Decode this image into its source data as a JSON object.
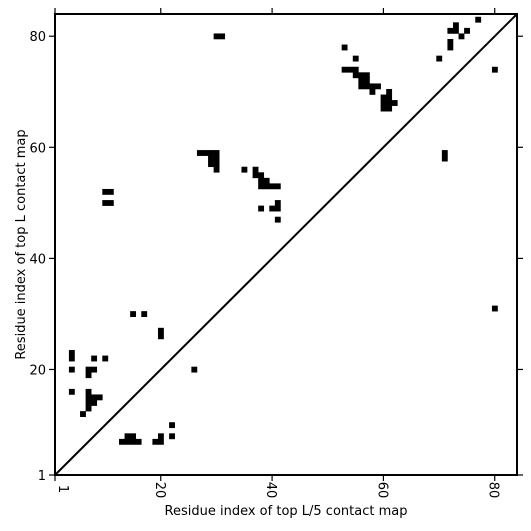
{
  "chart_data": {
    "type": "scatter",
    "title": "",
    "xlabel": "Residue index of top L/5 contact map",
    "ylabel": "Residue index of top L contact map",
    "xlim": [
      1,
      84
    ],
    "ylim": [
      1,
      84
    ],
    "x_ticks": [
      1,
      20,
      40,
      60,
      80
    ],
    "y_ticks": [
      1,
      20,
      40,
      60,
      80
    ],
    "x_ticks_rotated": [
      1
    ],
    "grid": false,
    "legend": "none",
    "diagonal": true,
    "marker_color": "#000000",
    "points": [
      [
        30,
        80
      ],
      [
        31,
        80
      ],
      [
        53,
        78
      ],
      [
        55,
        76
      ],
      [
        53,
        74
      ],
      [
        54,
        74
      ],
      [
        55,
        74
      ],
      [
        55,
        73
      ],
      [
        56,
        73
      ],
      [
        57,
        73
      ],
      [
        56,
        72
      ],
      [
        57,
        72
      ],
      [
        56,
        71
      ],
      [
        57,
        71
      ],
      [
        58,
        71
      ],
      [
        59,
        71
      ],
      [
        58,
        70
      ],
      [
        61,
        70
      ],
      [
        60,
        69
      ],
      [
        61,
        69
      ],
      [
        60,
        68
      ],
      [
        61,
        68
      ],
      [
        62,
        68
      ],
      [
        60,
        67
      ],
      [
        61,
        67
      ],
      [
        72,
        79
      ],
      [
        72,
        78
      ],
      [
        73,
        82
      ],
      [
        72,
        81
      ],
      [
        73,
        81
      ],
      [
        75,
        81
      ],
      [
        74,
        80
      ],
      [
        77,
        83
      ],
      [
        70,
        76
      ],
      [
        80,
        74
      ],
      [
        71,
        59
      ],
      [
        71,
        58
      ],
      [
        27,
        59
      ],
      [
        28,
        59
      ],
      [
        29,
        59
      ],
      [
        30,
        59
      ],
      [
        29,
        58
      ],
      [
        30,
        58
      ],
      [
        29,
        57
      ],
      [
        30,
        57
      ],
      [
        30,
        56
      ],
      [
        35,
        56
      ],
      [
        37,
        56
      ],
      [
        37,
        55
      ],
      [
        38,
        55
      ],
      [
        38,
        54
      ],
      [
        39,
        54
      ],
      [
        38,
        53
      ],
      [
        39,
        53
      ],
      [
        40,
        53
      ],
      [
        41,
        53
      ],
      [
        41,
        50
      ],
      [
        38,
        49
      ],
      [
        40,
        49
      ],
      [
        41,
        49
      ],
      [
        41,
        47
      ],
      [
        10,
        52
      ],
      [
        11,
        52
      ],
      [
        10,
        50
      ],
      [
        11,
        50
      ],
      [
        15,
        30
      ],
      [
        17,
        30
      ],
      [
        20,
        27
      ],
      [
        20,
        26
      ],
      [
        80,
        31
      ],
      [
        4,
        23
      ],
      [
        4,
        22
      ],
      [
        8,
        22
      ],
      [
        10,
        22
      ],
      [
        4,
        20
      ],
      [
        7,
        20
      ],
      [
        8,
        20
      ],
      [
        7,
        19
      ],
      [
        26,
        20
      ],
      [
        4,
        16
      ],
      [
        7,
        16
      ],
      [
        7,
        15
      ],
      [
        8,
        15
      ],
      [
        9,
        15
      ],
      [
        7,
        14
      ],
      [
        8,
        14
      ],
      [
        7,
        13
      ],
      [
        6,
        12
      ],
      [
        22,
        10
      ],
      [
        14,
        8
      ],
      [
        15,
        8
      ],
      [
        22,
        8
      ],
      [
        20,
        8
      ],
      [
        13,
        7
      ],
      [
        14,
        7
      ],
      [
        15,
        7
      ],
      [
        16,
        7
      ],
      [
        19,
        7
      ],
      [
        20,
        7
      ]
    ]
  }
}
